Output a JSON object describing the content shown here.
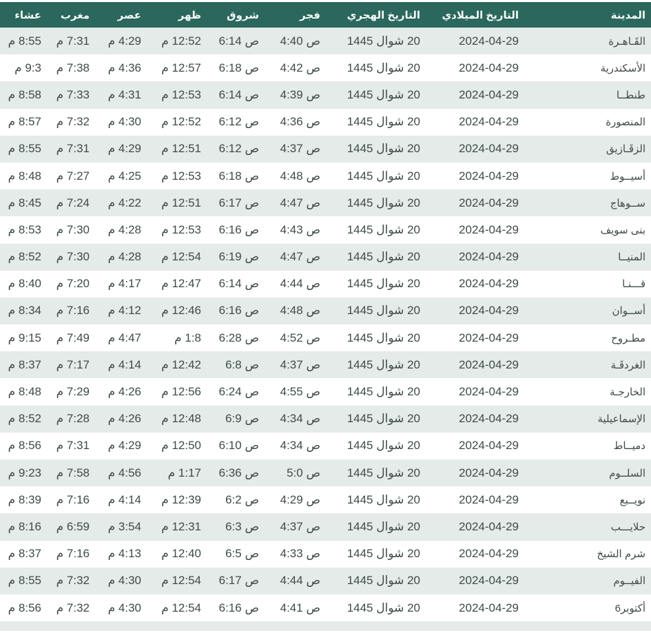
{
  "colors": {
    "header_bg": "#2b675c",
    "header_text": "#f5faf8",
    "row_alt_bg": "#e4ebe8",
    "row_bg": "#ffffff",
    "text": "#3e4b47"
  },
  "table": {
    "columns": [
      {
        "key": "city",
        "label": "المدينة"
      },
      {
        "key": "greg",
        "label": "التاريخ الميلادي"
      },
      {
        "key": "hijri",
        "label": "التاريخ الهجري"
      },
      {
        "key": "fajr",
        "label": "فجر"
      },
      {
        "key": "sunrise",
        "label": "شروق"
      },
      {
        "key": "dhuhr",
        "label": "ظهر"
      },
      {
        "key": "asr",
        "label": "عصر"
      },
      {
        "key": "maghrib",
        "label": "مغرب"
      },
      {
        "key": "isha",
        "label": "عشاء"
      }
    ],
    "rows": [
      {
        "city": "القَـاهـرة",
        "greg": "2024-04-29",
        "hijri": "20 شوال 1445",
        "fajr": "ص 4:40",
        "sunrise": "ص 6:14",
        "dhuhr": "12:52 م",
        "asr": "4:29 م",
        "maghrib": "7:31 م",
        "isha": "8:55 م"
      },
      {
        "city": "الأسكندرية",
        "greg": "2024-04-29",
        "hijri": "20 شوال 1445",
        "fajr": "ص 4:42",
        "sunrise": "ص 6:18",
        "dhuhr": "12:57 م",
        "asr": "4:36 م",
        "maghrib": "7:38 م",
        "isha": "9:3 م"
      },
      {
        "city": "طنطــا",
        "greg": "2024-04-29",
        "hijri": "20 شوال 1445",
        "fajr": "ص 4:39",
        "sunrise": "ص 6:14",
        "dhuhr": "12:53 م",
        "asr": "4:31 م",
        "maghrib": "7:33 م",
        "isha": "8:58 م"
      },
      {
        "city": "المنصورة",
        "greg": "2024-04-29",
        "hijri": "20 شوال 1445",
        "fajr": "ص 4:36",
        "sunrise": "ص 6:12",
        "dhuhr": "12:52 م",
        "asr": "4:30 م",
        "maghrib": "7:32 م",
        "isha": "8:57 م"
      },
      {
        "city": "الزقَـازيق",
        "greg": "2024-04-29",
        "hijri": "20 شوال 1445",
        "fajr": "ص 4:37",
        "sunrise": "ص 6:12",
        "dhuhr": "12:51 م",
        "asr": "4:29 م",
        "maghrib": "7:31 م",
        "isha": "8:55 م"
      },
      {
        "city": "أسيــوط",
        "greg": "2024-04-29",
        "hijri": "20 شوال 1445",
        "fajr": "ص 4:48",
        "sunrise": "ص 6:18",
        "dhuhr": "12:53 م",
        "asr": "4:25 م",
        "maghrib": "7:27 م",
        "isha": "8:48 م"
      },
      {
        "city": "ســوهاج",
        "greg": "2024-04-29",
        "hijri": "20 شوال 1445",
        "fajr": "ص 4:47",
        "sunrise": "ص 6:17",
        "dhuhr": "12:51 م",
        "asr": "4:22 م",
        "maghrib": "7:24 م",
        "isha": "8:45 م"
      },
      {
        "city": "بنى سويف",
        "greg": "2024-04-29",
        "hijri": "20 شوال 1445",
        "fajr": "ص 4:43",
        "sunrise": "ص 6:16",
        "dhuhr": "12:53 م",
        "asr": "4:28 م",
        "maghrib": "7:30 م",
        "isha": "8:53 م"
      },
      {
        "city": "المنيــا",
        "greg": "2024-04-29",
        "hijri": "20 شوال 1445",
        "fajr": "ص 4:47",
        "sunrise": "ص 6:19",
        "dhuhr": "12:54 م",
        "asr": "4:28 م",
        "maghrib": "7:30 م",
        "isha": "8:52 م"
      },
      {
        "city": "قـــنـا",
        "greg": "2024-04-29",
        "hijri": "20 شوال 1445",
        "fajr": "ص 4:44",
        "sunrise": "ص 6:14",
        "dhuhr": "12:47 م",
        "asr": "4:17 م",
        "maghrib": "7:20 م",
        "isha": "8:40 م"
      },
      {
        "city": "أســوان",
        "greg": "2024-04-29",
        "hijri": "20 شوال 1445",
        "fajr": "ص 4:48",
        "sunrise": "ص 6:16",
        "dhuhr": "12:46 م",
        "asr": "4:12 م",
        "maghrib": "7:16 م",
        "isha": "8:34 م"
      },
      {
        "city": "مطـروح",
        "greg": "2024-04-29",
        "hijri": "20 شوال 1445",
        "fajr": "ص 4:52",
        "sunrise": "ص 6:28",
        "dhuhr": "1:8 م",
        "asr": "4:47 م",
        "maghrib": "7:49 م",
        "isha": "9:15 م"
      },
      {
        "city": "الغردقَـة",
        "greg": "2024-04-29",
        "hijri": "20 شوال 1445",
        "fajr": "ص 4:37",
        "sunrise": "ص 6:8",
        "dhuhr": "12:42 م",
        "asr": "4:14 م",
        "maghrib": "7:17 م",
        "isha": "8:37 م"
      },
      {
        "city": "الخارجـة",
        "greg": "2024-04-29",
        "hijri": "20 شوال 1445",
        "fajr": "ص 4:55",
        "sunrise": "ص 6:24",
        "dhuhr": "12:56 م",
        "asr": "4:26 م",
        "maghrib": "7:29 م",
        "isha": "8:48 م"
      },
      {
        "city": "الإسماعيلية",
        "greg": "2024-04-29",
        "hijri": "20 شوال 1445",
        "fajr": "ص 4:34",
        "sunrise": "ص 6:9",
        "dhuhr": "12:48 م",
        "asr": "4:26 م",
        "maghrib": "7:28 م",
        "isha": "8:52 م"
      },
      {
        "city": "دميــاط",
        "greg": "2024-04-29",
        "hijri": "20 شوال 1445",
        "fajr": "ص 4:34",
        "sunrise": "ص 6:10",
        "dhuhr": "12:50 م",
        "asr": "4:29 م",
        "maghrib": "7:31 م",
        "isha": "8:56 م"
      },
      {
        "city": "السلــوم",
        "greg": "2024-04-29",
        "hijri": "20 شوال 1445",
        "fajr": "ص 5:0",
        "sunrise": "ص 6:36",
        "dhuhr": "1:17 م",
        "asr": "4:56 م",
        "maghrib": "7:58 م",
        "isha": "9:23 م"
      },
      {
        "city": "نويــبع",
        "greg": "2024-04-29",
        "hijri": "20 شوال 1445",
        "fajr": "ص 4:29",
        "sunrise": "ص 6:2",
        "dhuhr": "12:39 م",
        "asr": "4:14 م",
        "maghrib": "7:16 م",
        "isha": "8:39 م"
      },
      {
        "city": "حلايـــب",
        "greg": "2024-04-29",
        "hijri": "20 شوال 1445",
        "fajr": "ص 4:37",
        "sunrise": "ص 6:3",
        "dhuhr": "12:31 م",
        "asr": "3:54 م",
        "maghrib": "6:59 م",
        "isha": "8:16 م"
      },
      {
        "city": "شرم الشيخ",
        "greg": "2024-04-29",
        "hijri": "20 شوال 1445",
        "fajr": "ص 4:33",
        "sunrise": "ص 6:5",
        "dhuhr": "12:40 م",
        "asr": "4:13 م",
        "maghrib": "7:16 م",
        "isha": "8:37 م"
      },
      {
        "city": "الفيــوم",
        "greg": "2024-04-29",
        "hijri": "20 شوال 1445",
        "fajr": "ص 4:44",
        "sunrise": "ص 6:17",
        "dhuhr": "12:54 م",
        "asr": "4:30 م",
        "maghrib": "7:32 م",
        "isha": "8:55 م"
      },
      {
        "city": "أكتوبر6",
        "greg": "2024-04-29",
        "hijri": "20 شوال 1445",
        "fajr": "ص 4:41",
        "sunrise": "ص 6:16",
        "dhuhr": "12:54 م",
        "asr": "4:30 م",
        "maghrib": "7:32 م",
        "isha": "8:56 م"
      }
    ]
  }
}
